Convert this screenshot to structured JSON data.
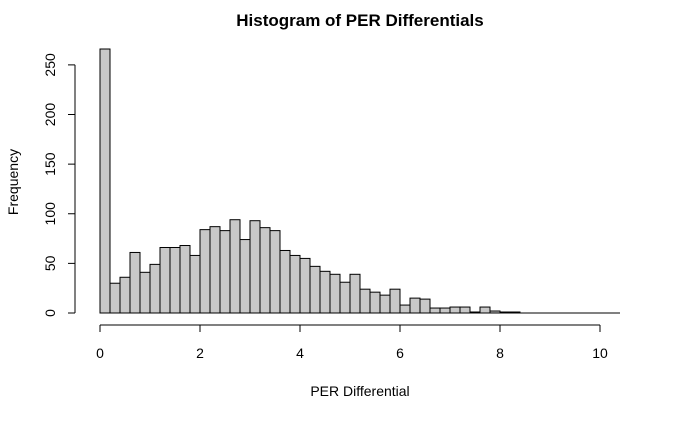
{
  "chart_data": {
    "type": "bar",
    "title": "Histogram of PER Differentials",
    "xlabel": "PER Differential",
    "ylabel": "Frequency",
    "bin_width": 0.2,
    "x_start": 0,
    "xlim": [
      0,
      10.4
    ],
    "ylim": [
      0,
      265
    ],
    "x_ticks": [
      0,
      2,
      4,
      6,
      8,
      10
    ],
    "y_ticks": [
      0,
      50,
      100,
      150,
      200,
      250
    ],
    "values": [
      266,
      30,
      36,
      61,
      41,
      49,
      66,
      66,
      68,
      58,
      84,
      87,
      83,
      94,
      74,
      93,
      86,
      83,
      63,
      58,
      55,
      47,
      42,
      39,
      31,
      39,
      24,
      21,
      18,
      24,
      8,
      15,
      14,
      5,
      5,
      6,
      6,
      1,
      6,
      2,
      1,
      1,
      0,
      0,
      0,
      0,
      0,
      0,
      0,
      0,
      0,
      0
    ],
    "bar_color": "#c8c8c8",
    "grid": false
  }
}
